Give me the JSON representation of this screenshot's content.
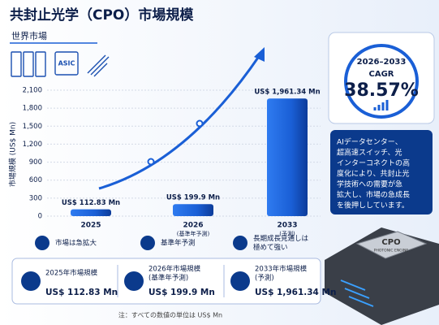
{
  "header": {
    "title": "共封止光学（CPO）市場規模",
    "subtitle": "世界市場",
    "icon_label": "ASIC"
  },
  "chart_data": {
    "type": "bar",
    "y_label": "市場規模 (US$ Mn)",
    "categories": [
      "2025",
      "2026",
      "2033"
    ],
    "category_notes": [
      null,
      "(基準年予測)",
      "(予測)"
    ],
    "values": [
      112.83,
      199.9,
      1961.34
    ],
    "value_labels": [
      "US$ 112.83 Mn",
      "US$ 199.9 Mn",
      "US$ 1,961.34 Mn"
    ],
    "color": "#1a5fd6",
    "ylim": [
      0,
      2100
    ],
    "yticks": [
      0,
      300,
      600,
      900,
      {
        "value": 1200,
        "label": "1,200"
      },
      {
        "value": 1500,
        "label": "1,500"
      },
      {
        "value": 1800,
        "label": "1,800"
      },
      {
        "value": 2100,
        "label": "2,100"
      }
    ],
    "grid": true
  },
  "cagr": {
    "period": "2026–2033",
    "label": "CAGR",
    "value": "38.57%"
  },
  "insight": [
    "AIデータセンター、",
    "超高速スイッチ、光",
    "インターコネクトの高",
    "度化により、共封止光",
    "学技術への需要が急",
    "拡大し、市場の急成長",
    "を後押ししています。"
  ],
  "highlights": [
    [
      "市場は急拡大"
    ],
    [
      "基準年予測"
    ],
    [
      "長期成長見通しは",
      "極めて強い"
    ]
  ],
  "kpis": [
    {
      "label": [
        "2025年市場規模"
      ],
      "value": "US$ 112.83 Mn"
    },
    {
      "label": [
        "2026年市場規模",
        "(基準年予測)"
      ],
      "value": "US$ 199.9 Mn"
    },
    {
      "label": [
        "2033年市場規模",
        "(予測)"
      ],
      "value": "US$ 1,961.34 Mn"
    }
  ],
  "product": {
    "name": "CPO",
    "sub": "PHOTONIC ENGINE"
  },
  "note": "注：すべての数値の単位は US$ Mn"
}
